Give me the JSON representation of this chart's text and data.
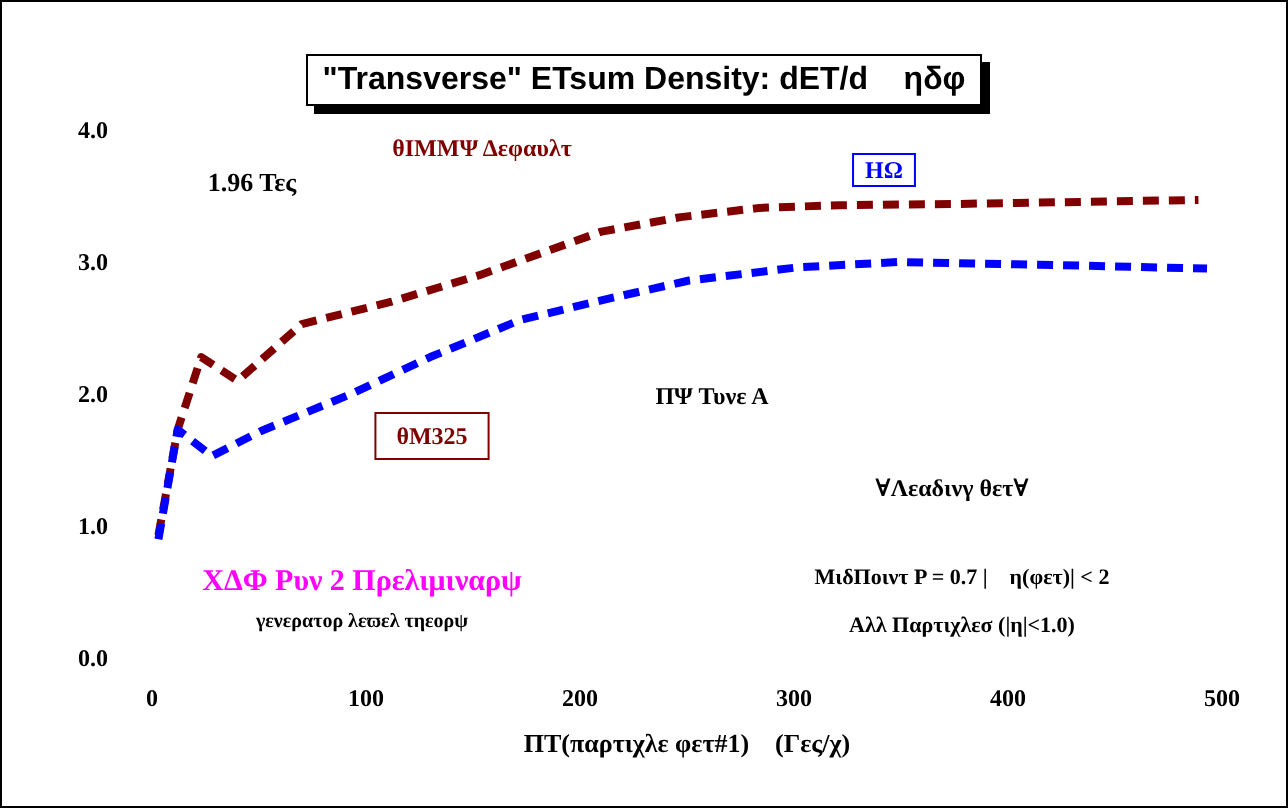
{
  "chart_data": {
    "type": "line",
    "title": "\"Transverse\" ETsum Density: dET/d    ηδφ",
    "xlabel": "ΠΤ(παρτιχλε φετ#1)    (Γες/χ)",
    "series": [
      {
        "name": "θΙΜΜΨ Δεφαυλτ",
        "color": "#800000",
        "x": [
          3,
          12,
          23,
          40,
          70,
          112,
          153,
          210,
          247,
          284,
          321,
          377,
          451,
          489
        ],
        "values": [
          0.93,
          1.73,
          2.28,
          2.1,
          2.53,
          2.7,
          2.9,
          3.23,
          3.34,
          3.41,
          3.43,
          3.44,
          3.46,
          3.47
        ]
      },
      {
        "name": "ΗΩ",
        "color": "#0000ff",
        "x": [
          3,
          12,
          28,
          51,
          93,
          130,
          172,
          210,
          251,
          302,
          349,
          414,
          493
        ],
        "values": [
          0.9,
          1.73,
          1.53,
          1.72,
          2.0,
          2.28,
          2.56,
          2.71,
          2.86,
          2.96,
          3.0,
          2.98,
          2.95
        ]
      }
    ],
    "annotations": [
      "1.96 Τες",
      "θΜ325",
      "ΠΨ Τυνε Α",
      "∀Λεαδινγ θετ∀",
      "ΧΔΦ Ρυν 2 Πρελιμιναρψ",
      "γενερατορ λεϖελ τηεορψ",
      "ΜιδΠοιντ P = 0.7 |    η(φετ)| < 2",
      "Αλλ Παρτιχλεσ (|η|<1.0)"
    ],
    "xlim": [
      0,
      500
    ],
    "xticks": [
      0,
      100,
      200,
      300,
      400,
      500
    ],
    "ylim": [
      0,
      4
    ],
    "yticks": [
      {
        "value": 0,
        "label": "0.0"
      },
      {
        "value": 1,
        "label": "1.0"
      },
      {
        "value": 2,
        "label": "2.0"
      },
      {
        "value": 3,
        "label": "3.0"
      },
      {
        "value": 4,
        "label": "4.0"
      }
    ],
    "grid": false,
    "legend": false,
    "marker": "none",
    "line_style": "dashed"
  }
}
